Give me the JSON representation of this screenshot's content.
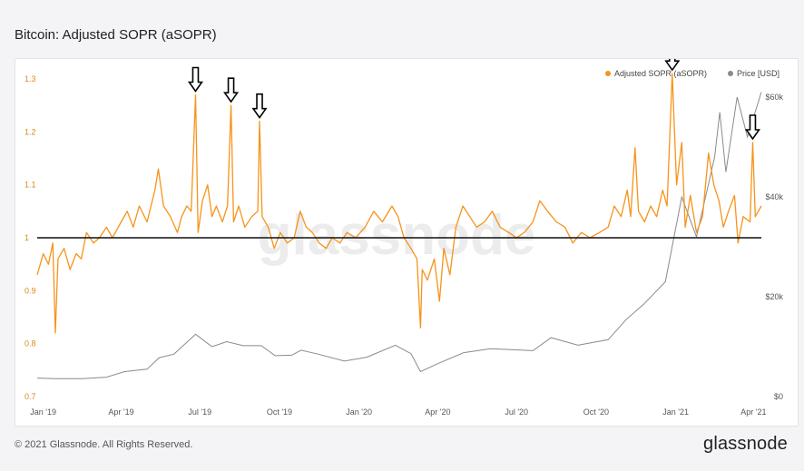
{
  "title": "Bitcoin: Adjusted SOPR (aSOPR)",
  "footer": {
    "copyright": "© 2021 Glassnode. All Rights Reserved.",
    "brand": "glassnode"
  },
  "watermark": "glassnode",
  "colors": {
    "asopr": "#f7931a",
    "price": "#8a8a8a",
    "baseline": "#111111",
    "left_axis": "#d98a1a",
    "right_axis": "#555555"
  },
  "chart_data": {
    "type": "line",
    "title": "Bitcoin: Adjusted SOPR (aSOPR)",
    "x_range": [
      "2018-12-25",
      "2021-04-10"
    ],
    "x_ticks": [
      "Jan '19",
      "Apr '19",
      "Jul '19",
      "Oct '19",
      "Jan '20",
      "Apr '20",
      "Jul '20",
      "Oct '20",
      "Jan '21",
      "Apr '21"
    ],
    "y_left": {
      "ticks": [
        "0.7",
        "0.8",
        "0.9",
        "1",
        "1.1",
        "1.2",
        "1.3"
      ],
      "range": [
        0.7,
        1.3
      ]
    },
    "y_right": {
      "ticks": [
        "$0",
        "$20k",
        "$40k",
        "$60k"
      ],
      "range": [
        0,
        60000
      ],
      "scale": "linear"
    },
    "legend": {
      "position": "top-right",
      "entries": [
        "Adjusted SOPR (aSOPR)",
        "Price [USD]"
      ]
    },
    "reference_line": 1.0,
    "series": [
      {
        "name": "Adjusted SOPR (aSOPR)",
        "axis": "left",
        "points": [
          [
            "2018-12-25",
            0.93
          ],
          [
            "2019-01-01",
            0.97
          ],
          [
            "2019-01-07",
            0.95
          ],
          [
            "2019-01-12",
            0.99
          ],
          [
            "2019-01-15",
            0.82
          ],
          [
            "2019-01-18",
            0.96
          ],
          [
            "2019-01-25",
            0.98
          ],
          [
            "2019-02-01",
            0.94
          ],
          [
            "2019-02-08",
            0.97
          ],
          [
            "2019-02-14",
            0.96
          ],
          [
            "2019-02-20",
            1.01
          ],
          [
            "2019-02-28",
            0.99
          ],
          [
            "2019-03-07",
            1.0
          ],
          [
            "2019-03-15",
            1.02
          ],
          [
            "2019-03-22",
            1.0
          ],
          [
            "2019-04-01",
            1.03
          ],
          [
            "2019-04-08",
            1.05
          ],
          [
            "2019-04-15",
            1.02
          ],
          [
            "2019-04-22",
            1.06
          ],
          [
            "2019-05-01",
            1.03
          ],
          [
            "2019-05-10",
            1.09
          ],
          [
            "2019-05-14",
            1.13
          ],
          [
            "2019-05-20",
            1.06
          ],
          [
            "2019-05-28",
            1.04
          ],
          [
            "2019-06-05",
            1.01
          ],
          [
            "2019-06-10",
            1.04
          ],
          [
            "2019-06-16",
            1.06
          ],
          [
            "2019-06-21",
            1.05
          ],
          [
            "2019-06-26",
            1.27
          ],
          [
            "2019-06-29",
            1.01
          ],
          [
            "2019-07-04",
            1.07
          ],
          [
            "2019-07-10",
            1.1
          ],
          [
            "2019-07-15",
            1.04
          ],
          [
            "2019-07-20",
            1.06
          ],
          [
            "2019-07-27",
            1.03
          ],
          [
            "2019-08-02",
            1.06
          ],
          [
            "2019-08-06",
            1.25
          ],
          [
            "2019-08-09",
            1.03
          ],
          [
            "2019-08-15",
            1.06
          ],
          [
            "2019-08-22",
            1.02
          ],
          [
            "2019-08-30",
            1.04
          ],
          [
            "2019-09-06",
            1.05
          ],
          [
            "2019-09-08",
            1.22
          ],
          [
            "2019-09-11",
            1.04
          ],
          [
            "2019-09-18",
            1.02
          ],
          [
            "2019-09-25",
            0.98
          ],
          [
            "2019-10-02",
            1.01
          ],
          [
            "2019-10-10",
            0.99
          ],
          [
            "2019-10-18",
            1.0
          ],
          [
            "2019-10-25",
            1.05
          ],
          [
            "2019-11-01",
            1.02
          ],
          [
            "2019-11-08",
            1.01
          ],
          [
            "2019-11-16",
            0.99
          ],
          [
            "2019-11-24",
            0.98
          ],
          [
            "2019-12-01",
            1.0
          ],
          [
            "2019-12-10",
            0.99
          ],
          [
            "2019-12-18",
            1.01
          ],
          [
            "2019-12-28",
            1.0
          ],
          [
            "2020-01-08",
            1.02
          ],
          [
            "2020-01-18",
            1.05
          ],
          [
            "2020-01-28",
            1.03
          ],
          [
            "2020-02-08",
            1.06
          ],
          [
            "2020-02-15",
            1.04
          ],
          [
            "2020-02-22",
            1.0
          ],
          [
            "2020-03-01",
            0.98
          ],
          [
            "2020-03-08",
            0.96
          ],
          [
            "2020-03-12",
            0.83
          ],
          [
            "2020-03-14",
            0.94
          ],
          [
            "2020-03-20",
            0.92
          ],
          [
            "2020-03-28",
            0.96
          ],
          [
            "2020-04-03",
            0.88
          ],
          [
            "2020-04-08",
            0.98
          ],
          [
            "2020-04-15",
            0.93
          ],
          [
            "2020-04-22",
            1.02
          ],
          [
            "2020-04-30",
            1.06
          ],
          [
            "2020-05-08",
            1.04
          ],
          [
            "2020-05-16",
            1.02
          ],
          [
            "2020-05-25",
            1.03
          ],
          [
            "2020-06-03",
            1.05
          ],
          [
            "2020-06-12",
            1.02
          ],
          [
            "2020-06-22",
            1.01
          ],
          [
            "2020-07-01",
            1.0
          ],
          [
            "2020-07-10",
            1.01
          ],
          [
            "2020-07-20",
            1.03
          ],
          [
            "2020-07-28",
            1.07
          ],
          [
            "2020-08-06",
            1.05
          ],
          [
            "2020-08-16",
            1.03
          ],
          [
            "2020-08-26",
            1.02
          ],
          [
            "2020-09-04",
            0.99
          ],
          [
            "2020-09-14",
            1.01
          ],
          [
            "2020-09-24",
            1.0
          ],
          [
            "2020-10-05",
            1.01
          ],
          [
            "2020-10-15",
            1.02
          ],
          [
            "2020-10-22",
            1.06
          ],
          [
            "2020-10-30",
            1.04
          ],
          [
            "2020-11-06",
            1.09
          ],
          [
            "2020-11-10",
            1.04
          ],
          [
            "2020-11-15",
            1.17
          ],
          [
            "2020-11-19",
            1.05
          ],
          [
            "2020-11-26",
            1.03
          ],
          [
            "2020-12-03",
            1.06
          ],
          [
            "2020-12-10",
            1.04
          ],
          [
            "2020-12-17",
            1.09
          ],
          [
            "2020-12-22",
            1.06
          ],
          [
            "2020-12-28",
            1.31
          ],
          [
            "2021-01-02",
            1.1
          ],
          [
            "2021-01-08",
            1.18
          ],
          [
            "2021-01-12",
            1.02
          ],
          [
            "2021-01-18",
            1.08
          ],
          [
            "2021-01-25",
            1.01
          ],
          [
            "2021-02-01",
            1.04
          ],
          [
            "2021-02-08",
            1.16
          ],
          [
            "2021-02-14",
            1.1
          ],
          [
            "2021-02-20",
            1.07
          ],
          [
            "2021-02-25",
            1.02
          ],
          [
            "2021-03-03",
            1.05
          ],
          [
            "2021-03-10",
            1.08
          ],
          [
            "2021-03-14",
            0.99
          ],
          [
            "2021-03-20",
            1.04
          ],
          [
            "2021-03-28",
            1.03
          ],
          [
            "2021-03-31",
            1.18
          ],
          [
            "2021-04-03",
            1.04
          ],
          [
            "2021-04-10",
            1.06
          ]
        ]
      },
      {
        "name": "Price [USD]",
        "axis": "right",
        "points": [
          [
            "2018-12-25",
            3700
          ],
          [
            "2019-01-15",
            3600
          ],
          [
            "2019-02-15",
            3600
          ],
          [
            "2019-03-15",
            3900
          ],
          [
            "2019-04-05",
            5000
          ],
          [
            "2019-05-01",
            5500
          ],
          [
            "2019-05-15",
            7800
          ],
          [
            "2019-06-01",
            8500
          ],
          [
            "2019-06-26",
            12500
          ],
          [
            "2019-07-15",
            10000
          ],
          [
            "2019-08-01",
            11000
          ],
          [
            "2019-08-20",
            10200
          ],
          [
            "2019-09-10",
            10200
          ],
          [
            "2019-09-26",
            8200
          ],
          [
            "2019-10-15",
            8300
          ],
          [
            "2019-10-26",
            9300
          ],
          [
            "2019-11-15",
            8500
          ],
          [
            "2019-12-15",
            7100
          ],
          [
            "2020-01-10",
            7900
          ],
          [
            "2020-02-12",
            10300
          ],
          [
            "2020-03-01",
            8600
          ],
          [
            "2020-03-12",
            5000
          ],
          [
            "2020-04-01",
            6600
          ],
          [
            "2020-05-01",
            8800
          ],
          [
            "2020-06-01",
            9600
          ],
          [
            "2020-07-20",
            9200
          ],
          [
            "2020-08-10",
            11800
          ],
          [
            "2020-09-10",
            10300
          ],
          [
            "2020-10-15",
            11400
          ],
          [
            "2020-11-05",
            15500
          ],
          [
            "2020-11-25",
            18500
          ],
          [
            "2020-12-20",
            23000
          ],
          [
            "2021-01-08",
            40000
          ],
          [
            "2021-01-25",
            32000
          ],
          [
            "2021-02-15",
            48000
          ],
          [
            "2021-02-21",
            57000
          ],
          [
            "2021-02-28",
            45000
          ],
          [
            "2021-03-13",
            60000
          ],
          [
            "2021-03-25",
            52000
          ],
          [
            "2021-04-10",
            61000
          ]
        ]
      }
    ],
    "annotations": [
      {
        "type": "down-arrow",
        "date": "2019-06-26",
        "value": 1.27
      },
      {
        "type": "down-arrow",
        "date": "2019-08-06",
        "value": 1.25
      },
      {
        "type": "down-arrow",
        "date": "2019-09-08",
        "value": 1.22
      },
      {
        "type": "down-arrow",
        "date": "2020-12-28",
        "value": 1.31
      },
      {
        "type": "down-arrow",
        "date": "2021-03-31",
        "value": 1.18
      }
    ]
  }
}
